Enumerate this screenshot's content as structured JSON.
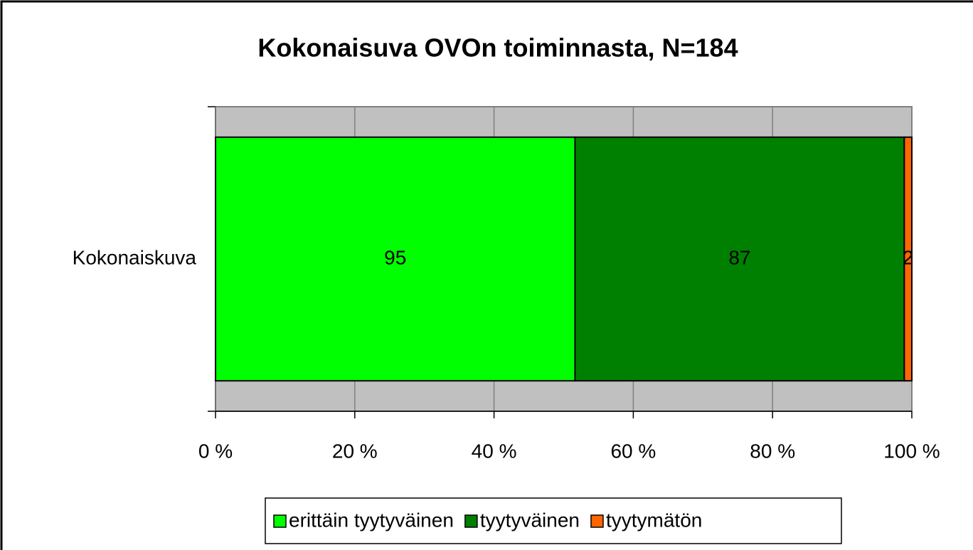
{
  "chart_data": {
    "type": "bar",
    "orientation": "horizontal",
    "stacking": "percent",
    "title": "Kokonaisuva OVOn toiminnasta, N=184",
    "categories": [
      "Kokonaiskuva"
    ],
    "series": [
      {
        "name": "erittäin tyytyväinen",
        "color": "#00ff00",
        "values": [
          95
        ]
      },
      {
        "name": "tyytyväinen",
        "color": "#008000",
        "values": [
          87
        ]
      },
      {
        "name": "tyytymätön",
        "color": "#ff6600",
        "values": [
          2
        ]
      }
    ],
    "xlim": [
      0,
      100
    ],
    "xticks": [
      {
        "value": 0,
        "label": "0 %"
      },
      {
        "value": 20,
        "label": "20 %"
      },
      {
        "value": 40,
        "label": "40 %"
      },
      {
        "value": 60,
        "label": "60 %"
      },
      {
        "value": 80,
        "label": "80 %"
      },
      {
        "value": 100,
        "label": "100 %"
      }
    ],
    "grid": true,
    "legend": "bottom"
  }
}
